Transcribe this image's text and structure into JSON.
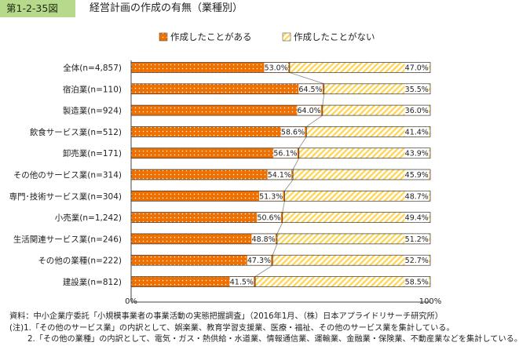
{
  "figure": {
    "number": "第1-2-35図",
    "title": "経営計画の作成の有無（業種別）"
  },
  "colors": {
    "header_bg": "#b7d98c",
    "series_created": "#ee7000",
    "series_not_created": "#ffd34d",
    "connector": "#777777"
  },
  "chart_data": {
    "type": "bar",
    "orientation": "horizontal",
    "stacked": true,
    "percent": true,
    "categories": [
      "全体(n=4,857)",
      "宿泊業(n=110)",
      "製造業(n=924)",
      "飲食サービス業(n=512)",
      "卸売業(n=171)",
      "その他のサービス業(n=314)",
      "専門･技術サービス業(n=304)",
      "小売業(n=1,242)",
      "生活関連サービス業(n=246)",
      "その他の業種(n=222)",
      "建設業(n=812)"
    ],
    "series": [
      {
        "name": "作成したことがある",
        "values": [
          53.0,
          64.5,
          64.0,
          58.6,
          56.1,
          54.1,
          51.3,
          50.6,
          48.8,
          47.3,
          41.5
        ],
        "pattern": "dots"
      },
      {
        "name": "作成したことがない",
        "values": [
          47.0,
          35.5,
          36.0,
          41.4,
          43.9,
          45.9,
          48.7,
          49.4,
          51.2,
          52.7,
          58.5
        ],
        "pattern": "diagonal-stripes"
      }
    ],
    "xlim": [
      0,
      100
    ],
    "x_ticks": [
      "0%",
      "100%"
    ],
    "legend_position": "top",
    "series_connector_lines": true,
    "value_label_format": "{v}%"
  },
  "notes": {
    "source": "資料：中小企業庁委託「小規模事業者の事業活動の実態把握調査」（2016年1月、（株）日本アプライドリサーチ研究所）",
    "note1": "(注)1.「その他のサービス業」の内訳として、娯楽業、教育学習支援業、医療・福祉、その他のサービス業を集計している。",
    "note2": "2.「その他の業種」の内訳として、電気・ガス・熱供給・水道業、情報通信業、運輸業、金融業・保険業、不動産業などを集計している。"
  }
}
